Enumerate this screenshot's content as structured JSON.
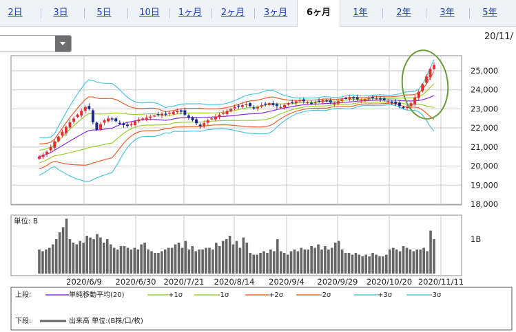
{
  "tabs": [
    {
      "label": "2日",
      "active": false
    },
    {
      "label": "3日",
      "active": false
    },
    {
      "label": "5日",
      "active": false
    },
    {
      "label": "10日",
      "active": false
    },
    {
      "label": "1ヶ月",
      "active": false
    },
    {
      "label": "2ヶ月",
      "active": false
    },
    {
      "label": "3ヶ月",
      "active": false
    },
    {
      "label": "6ヶ月",
      "active": true
    },
    {
      "label": "1年",
      "active": false
    },
    {
      "label": "2年",
      "active": false
    },
    {
      "label": "3年",
      "active": false
    },
    {
      "label": "5年",
      "active": false
    }
  ],
  "select": {
    "value": ""
  },
  "date_corner": "20/11/",
  "chart_data": [
    {
      "type": "candlestick",
      "ylim": [
        18000,
        25800
      ],
      "y_ticks": [
        "25,000",
        "24,000",
        "23,000",
        "22,000",
        "21,000",
        "20,000",
        "19,000",
        "18,000"
      ],
      "x_ticks": [
        "2020/6/9",
        "2020/6/30",
        "2020/7/21",
        "2020/8/14",
        "2020/9/4",
        "2020/9/29",
        "2020/10/20",
        "2020/11/11"
      ],
      "close_series": [
        20500,
        20600,
        20750,
        21000,
        21300,
        21550,
        21800,
        22050,
        22300,
        22500,
        22700,
        22900,
        23100,
        23000,
        22300,
        21900,
        22200,
        22400,
        22500,
        22450,
        22350,
        22250,
        22150,
        22100,
        22200,
        22350,
        22450,
        22500,
        22550,
        22600,
        22650,
        22700,
        22750,
        22700,
        22800,
        22850,
        22900,
        22850,
        22700,
        22550,
        22400,
        22250,
        22100,
        22250,
        22400,
        22500,
        22600,
        22700,
        22800,
        22900,
        23000,
        23100,
        23150,
        23200,
        23250,
        23150,
        23050,
        23100,
        23200,
        23250,
        23300,
        23200,
        23150,
        23100,
        23200,
        23300,
        23350,
        23400,
        23450,
        23400,
        23350,
        23300,
        23350,
        23400,
        23450,
        23400,
        23350,
        23300,
        23400,
        23500,
        23550,
        23600,
        23550,
        23500,
        23450,
        23500,
        23550,
        23600,
        23550,
        23500,
        23450,
        23400,
        23350,
        23250,
        23150,
        23050,
        23100,
        23300,
        23600,
        23900,
        24300,
        24700,
        25100,
        25300
      ],
      "colors": {
        "up": "#e03030",
        "down": "#1a2a8a",
        "ma": "#8a2be2",
        "sigma1": "#9acd32",
        "sigma2": "#e8602c",
        "sigma3": "#4ec3dc",
        "volume": "#666666"
      }
    },
    {
      "type": "bar",
      "label": "単位: B",
      "ylim": [
        0,
        1.6
      ],
      "y_ticks": [
        "1B"
      ],
      "values": [
        0.7,
        0.65,
        0.7,
        0.75,
        0.85,
        1.0,
        1.2,
        1.35,
        1.6,
        1.0,
        0.9,
        0.85,
        0.95,
        0.9,
        1.1,
        1.05,
        1.0,
        1.15,
        1.05,
        0.9,
        1.0,
        0.85,
        0.75,
        0.7,
        0.8,
        0.8,
        0.75,
        0.7,
        0.75,
        0.7,
        0.85,
        0.9,
        0.7,
        0.65,
        0.6,
        0.6,
        0.65,
        0.7,
        0.75,
        0.75,
        0.85,
        0.9,
        0.75,
        0.95,
        0.7,
        0.8,
        0.65,
        0.7,
        0.7,
        0.75,
        0.75,
        0.7,
        0.9,
        0.8,
        0.95,
        1.0,
        1.1,
        0.85,
        0.95,
        0.75,
        1.05,
        0.9,
        0.6,
        0.55,
        0.55,
        0.6,
        0.65,
        0.6,
        0.7,
        0.65,
        1.0,
        0.65,
        0.6,
        0.55,
        0.65,
        0.7,
        0.65,
        0.75,
        0.7,
        0.7,
        0.8,
        0.75,
        0.85,
        0.7,
        0.8,
        0.7,
        0.75,
        0.9,
        0.95,
        0.7,
        0.6,
        0.6,
        0.55,
        0.6,
        0.55,
        0.5,
        0.55,
        0.5,
        0.6,
        0.55,
        0.5,
        0.5,
        0.55,
        0.7,
        0.75,
        0.7,
        0.65,
        0.8,
        0.75,
        0.7,
        0.65,
        0.7,
        0.7,
        0.75,
        0.65,
        1.25,
        1.0
      ]
    }
  ],
  "legend": {
    "upper_label": "上段:",
    "lower_label": "下段:",
    "items": [
      {
        "name": "単純移動平均(20)",
        "color": "#8a2be2"
      },
      {
        "name": "+1σ",
        "color": "#9acd32"
      },
      {
        "name": "-1σ",
        "color": "#9acd32"
      },
      {
        "name": "+2σ",
        "color": "#e8602c"
      },
      {
        "name": "-2σ",
        "color": "#e8602c"
      },
      {
        "name": "+3σ",
        "color": "#4ec3dc"
      },
      {
        "name": "-3σ",
        "color": "#4ec3dc"
      }
    ],
    "volume_name": "出来高 単位:(B株/口/枚)",
    "volume_color": "#666666"
  }
}
